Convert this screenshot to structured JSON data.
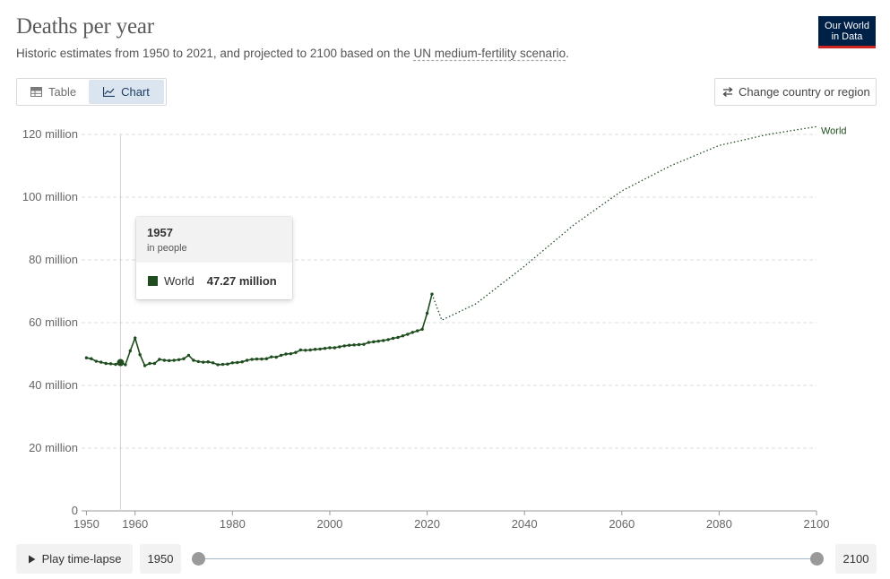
{
  "header": {
    "title": "Deaths per year",
    "subtitle_prefix": "Historic estimates from 1950 to 2021, and projected to 2100 based on the ",
    "subtitle_link": "UN medium-fertility scenario",
    "subtitle_suffix": ".",
    "logo_line1": "Our World",
    "logo_line2": "in Data"
  },
  "tabs": [
    {
      "label": "Table",
      "icon": "table-icon",
      "active": false
    },
    {
      "label": "Chart",
      "icon": "line-chart-icon",
      "active": true
    }
  ],
  "change_button": {
    "label": "Change country or region",
    "icon": "swap-arrows-icon"
  },
  "tooltip": {
    "year": "1957",
    "unit": "in people",
    "series": "World",
    "value": "47.27 million",
    "color": "#1f4d1f"
  },
  "controls": {
    "play_label": "Play time-lapse",
    "start_year": "1950",
    "end_year": "2100"
  },
  "colors": {
    "series": "#1f4d1f",
    "grid": "#dddddd",
    "axis_text": "#666666"
  },
  "chart_data": {
    "type": "line",
    "title": "Deaths per year",
    "xlabel": "",
    "ylabel": "",
    "xlim": [
      1949,
      2100
    ],
    "ylim": [
      0,
      120000000
    ],
    "x_ticks": [
      1950,
      1960,
      1980,
      2000,
      2020,
      2040,
      2060,
      2080,
      2100
    ],
    "y_ticks": [
      {
        "value": 0,
        "label": "0"
      },
      {
        "value": 20000000,
        "label": "20 million"
      },
      {
        "value": 40000000,
        "label": "40 million"
      },
      {
        "value": 60000000,
        "label": "60 million"
      },
      {
        "value": 80000000,
        "label": "80 million"
      },
      {
        "value": 100000000,
        "label": "100 million"
      },
      {
        "value": 120000000,
        "label": "120 million"
      }
    ],
    "grid": true,
    "highlight_year": 1957,
    "series": [
      {
        "name": "World",
        "style": "solid",
        "x": [
          1950,
          1951,
          1952,
          1953,
          1954,
          1955,
          1956,
          1957,
          1958,
          1959,
          1960,
          1961,
          1962,
          1963,
          1964,
          1965,
          1966,
          1967,
          1968,
          1969,
          1970,
          1971,
          1972,
          1973,
          1974,
          1975,
          1976,
          1977,
          1978,
          1979,
          1980,
          1981,
          1982,
          1983,
          1984,
          1985,
          1986,
          1987,
          1988,
          1989,
          1990,
          1991,
          1992,
          1993,
          1994,
          1995,
          1996,
          1997,
          1998,
          1999,
          2000,
          2001,
          2002,
          2003,
          2004,
          2005,
          2006,
          2007,
          2008,
          2009,
          2010,
          2011,
          2012,
          2013,
          2014,
          2015,
          2016,
          2017,
          2018,
          2019,
          2020,
          2021
        ],
        "y": [
          48.8,
          48.5,
          47.7,
          47.4,
          47.0,
          46.9,
          46.7,
          47.27,
          46.6,
          51.0,
          55.1,
          49.8,
          46.3,
          47.0,
          47.0,
          48.3,
          48.0,
          47.9,
          48.0,
          48.2,
          48.5,
          49.6,
          48.0,
          47.6,
          47.4,
          47.5,
          47.2,
          46.6,
          46.7,
          46.8,
          47.2,
          47.3,
          47.5,
          48.0,
          48.3,
          48.4,
          48.4,
          48.5,
          49.1,
          49.0,
          49.6,
          50.0,
          50.1,
          50.5,
          51.3,
          51.2,
          51.3,
          51.5,
          51.6,
          51.8,
          52.0,
          52.0,
          52.3,
          52.6,
          52.8,
          52.9,
          53.0,
          53.1,
          53.7,
          53.9,
          54.1,
          54.3,
          54.6,
          55.0,
          55.3,
          55.8,
          56.3,
          56.9,
          57.4,
          57.9,
          63.0,
          69.1
        ],
        "unit": "million"
      },
      {
        "name": "World",
        "style": "dotted",
        "x": [
          2021,
          2023,
          2030,
          2040,
          2050,
          2060,
          2070,
          2080,
          2090,
          2100
        ],
        "y": [
          69.1,
          60.8,
          66.0,
          78.0,
          91.0,
          102.0,
          110.0,
          116.5,
          120.0,
          122.5
        ],
        "unit": "million"
      }
    ]
  }
}
